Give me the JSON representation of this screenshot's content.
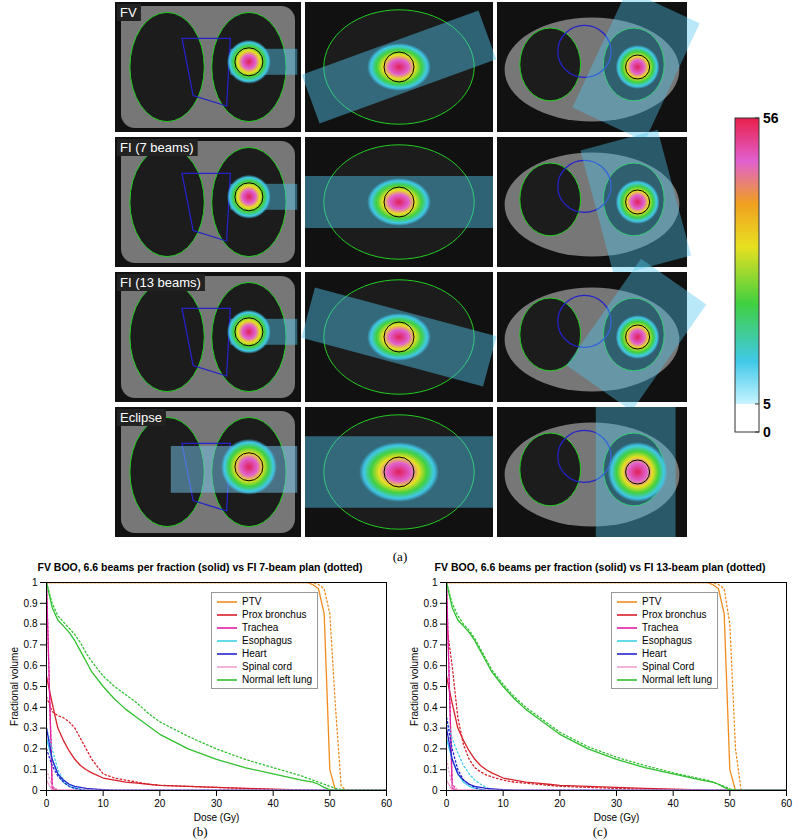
{
  "chart_data": [
    {
      "type": "image",
      "rows": [
        "FV",
        "FI (7 beams)",
        "FI (13 beams)",
        "Eclipse"
      ],
      "colorbar": {
        "range": [
          0,
          56
        ],
        "ticks": [
          0,
          5,
          56
        ]
      },
      "caption": "(a)"
    },
    {
      "type": "line",
      "title": "FV BOO, 6.6 beams per fraction (solid) vs FI 7-beam plan (dotted)",
      "x_label": "Dose (Gy)",
      "y_label": "Fractional volume",
      "xlim": [
        0,
        60
      ],
      "xticks": [
        0,
        10,
        20,
        30,
        40,
        50,
        60
      ],
      "ylim": [
        0,
        1
      ],
      "yticks": [
        0,
        0.1,
        0.2,
        0.3,
        0.4,
        0.5,
        0.6,
        0.7,
        0.8,
        0.9,
        1
      ],
      "grid": false,
      "legend": "upper right",
      "caption": "(b)",
      "x": [
        0,
        1,
        2,
        3,
        4,
        5,
        6,
        7,
        8,
        10,
        12,
        14,
        16,
        18,
        20,
        25,
        30,
        35,
        40,
        45,
        46,
        47,
        48,
        49,
        50,
        51,
        52,
        53,
        55,
        60
      ],
      "series": [
        {
          "name": "PTV",
          "color": "#f08c1e",
          "line_style": "solid",
          "values": [
            1,
            1,
            1,
            1,
            1,
            1,
            1,
            1,
            1,
            1,
            1,
            1,
            1,
            1,
            1,
            1,
            1,
            1,
            1,
            1,
            1,
            0.99,
            0.97,
            0.85,
            0.1,
            0,
            0,
            0,
            0,
            0
          ]
        },
        {
          "name": "PTV",
          "color": "#f08c1e",
          "line_style": "dotted",
          "values": [
            1,
            1,
            1,
            1,
            1,
            1,
            1,
            1,
            1,
            1,
            1,
            1,
            1,
            1,
            1,
            1,
            1,
            1,
            1,
            1,
            1,
            1,
            0.99,
            0.97,
            0.85,
            0.4,
            0.02,
            0,
            0,
            0
          ]
        },
        {
          "name": "Prox bronchus",
          "color": "#d8202a",
          "line_style": "solid",
          "values": [
            0.55,
            0.42,
            0.3,
            0.24,
            0.19,
            0.15,
            0.12,
            0.1,
            0.085,
            0.06,
            0.05,
            0.04,
            0.035,
            0.03,
            0.025,
            0.02,
            0.015,
            0.01,
            0.006,
            0.003,
            0.001,
            0,
            0,
            0,
            0,
            0,
            0,
            0,
            0,
            0
          ]
        },
        {
          "name": "Prox bronchus",
          "color": "#d8202a",
          "line_style": "dotted",
          "values": [
            0.45,
            0.38,
            0.36,
            0.35,
            0.33,
            0.3,
            0.25,
            0.2,
            0.15,
            0.08,
            0.06,
            0.05,
            0.04,
            0.03,
            0.025,
            0.02,
            0.015,
            0.01,
            0.005,
            0,
            0,
            0,
            0,
            0,
            0,
            0,
            0,
            0,
            0,
            0
          ]
        },
        {
          "name": "Trachea",
          "color": "#e020a0",
          "line_style": "solid",
          "values": [
            1,
            0.01,
            0,
            0,
            0,
            0,
            0,
            0,
            0,
            0,
            0,
            0,
            0,
            0,
            0,
            0,
            0,
            0,
            0,
            0,
            0,
            0,
            0,
            0,
            0,
            0,
            0,
            0,
            0,
            0
          ]
        },
        {
          "name": "Trachea",
          "color": "#e020a0",
          "line_style": "dotted",
          "values": [
            1,
            0.02,
            0,
            0,
            0,
            0,
            0,
            0,
            0,
            0,
            0,
            0,
            0,
            0,
            0,
            0,
            0,
            0,
            0,
            0,
            0,
            0,
            0,
            0,
            0,
            0,
            0,
            0,
            0,
            0
          ]
        },
        {
          "name": "Esophagus",
          "color": "#40d0e8",
          "line_style": "solid",
          "values": [
            0.25,
            0.15,
            0.08,
            0.04,
            0.02,
            0.01,
            0.005,
            0,
            0,
            0,
            0,
            0,
            0,
            0,
            0,
            0,
            0,
            0,
            0,
            0,
            0,
            0,
            0,
            0,
            0,
            0,
            0,
            0,
            0,
            0
          ]
        },
        {
          "name": "Esophagus",
          "color": "#40d0e8",
          "line_style": "dotted",
          "values": [
            0.3,
            0.2,
            0.1,
            0.05,
            0.03,
            0.015,
            0.005,
            0,
            0,
            0,
            0,
            0,
            0,
            0,
            0,
            0,
            0,
            0,
            0,
            0,
            0,
            0,
            0,
            0,
            0,
            0,
            0,
            0,
            0,
            0
          ]
        },
        {
          "name": "Heart",
          "color": "#2424d0",
          "line_style": "solid",
          "values": [
            0.3,
            0.15,
            0.08,
            0.05,
            0.03,
            0.02,
            0.015,
            0.01,
            0.008,
            0.004,
            0.001,
            0,
            0,
            0,
            0,
            0,
            0,
            0,
            0,
            0,
            0,
            0,
            0,
            0,
            0,
            0,
            0,
            0,
            0,
            0
          ]
        },
        {
          "name": "Heart",
          "color": "#2424d0",
          "line_style": "dotted",
          "values": [
            0.2,
            0.12,
            0.07,
            0.04,
            0.02,
            0.01,
            0.005,
            0,
            0,
            0,
            0,
            0,
            0,
            0,
            0,
            0,
            0,
            0,
            0,
            0,
            0,
            0,
            0,
            0,
            0,
            0,
            0,
            0,
            0,
            0
          ]
        },
        {
          "name": "Spinal cord",
          "color": "#f0a0d0",
          "line_style": "solid",
          "values": [
            0.05,
            0,
            0,
            0,
            0,
            0,
            0,
            0,
            0,
            0,
            0,
            0,
            0,
            0,
            0,
            0,
            0,
            0,
            0,
            0,
            0,
            0,
            0,
            0,
            0,
            0,
            0,
            0,
            0,
            0
          ]
        },
        {
          "name": "Spinal cord",
          "color": "#f0a0d0",
          "line_style": "dotted",
          "values": [
            0.1,
            0.02,
            0,
            0,
            0,
            0,
            0,
            0,
            0,
            0,
            0,
            0,
            0,
            0,
            0,
            0,
            0,
            0,
            0,
            0,
            0,
            0,
            0,
            0,
            0,
            0,
            0,
            0,
            0,
            0
          ]
        },
        {
          "name": "Normal left lung",
          "color": "#30c030",
          "line_style": "solid",
          "values": [
            1,
            0.88,
            0.82,
            0.79,
            0.76,
            0.72,
            0.67,
            0.62,
            0.57,
            0.5,
            0.44,
            0.39,
            0.35,
            0.31,
            0.27,
            0.2,
            0.15,
            0.11,
            0.08,
            0.05,
            0.045,
            0.04,
            0.03,
            0.015,
            0.003,
            0,
            0,
            0,
            0,
            0
          ]
        },
        {
          "name": "Normal left lung",
          "color": "#30c030",
          "line_style": "dotted",
          "values": [
            1,
            0.9,
            0.84,
            0.81,
            0.78,
            0.75,
            0.71,
            0.66,
            0.62,
            0.55,
            0.5,
            0.46,
            0.42,
            0.37,
            0.33,
            0.26,
            0.2,
            0.15,
            0.11,
            0.07,
            0.06,
            0.05,
            0.04,
            0.03,
            0.02,
            0.01,
            0.005,
            0,
            0,
            0
          ]
        }
      ]
    },
    {
      "type": "line",
      "title": "FV BOO, 6.6 beams per fraction (solid) vs FI 13-beam plan (dotted)",
      "x_label": "Dose (Gy)",
      "y_label": "Fractional volume",
      "xlim": [
        0,
        60
      ],
      "xticks": [
        0,
        10,
        20,
        30,
        40,
        50,
        60
      ],
      "ylim": [
        0,
        1
      ],
      "yticks": [
        0,
        0.1,
        0.2,
        0.3,
        0.4,
        0.5,
        0.6,
        0.7,
        0.8,
        0.9,
        1
      ],
      "grid": false,
      "legend": "upper right",
      "caption": "(c)",
      "x": [
        0,
        1,
        2,
        3,
        4,
        5,
        6,
        7,
        8,
        10,
        12,
        14,
        16,
        18,
        20,
        25,
        30,
        35,
        40,
        45,
        46,
        47,
        48,
        49,
        50,
        51,
        52,
        53,
        55,
        60
      ],
      "series": [
        {
          "name": "PTV",
          "color": "#f08c1e",
          "line_style": "solid",
          "values": [
            1,
            1,
            1,
            1,
            1,
            1,
            1,
            1,
            1,
            1,
            1,
            1,
            1,
            1,
            1,
            1,
            1,
            1,
            1,
            1,
            1,
            0.99,
            0.97,
            0.85,
            0.1,
            0,
            0,
            0,
            0,
            0
          ]
        },
        {
          "name": "PTV",
          "color": "#f08c1e",
          "line_style": "dotted",
          "values": [
            1,
            1,
            1,
            1,
            1,
            1,
            1,
            1,
            1,
            1,
            1,
            1,
            1,
            1,
            1,
            1,
            1,
            1,
            1,
            1,
            1,
            1,
            0.99,
            0.97,
            0.8,
            0.2,
            0,
            0,
            0,
            0
          ]
        },
        {
          "name": "Prox bronchus",
          "color": "#d8202a",
          "line_style": "solid",
          "values": [
            0.55,
            0.42,
            0.3,
            0.24,
            0.19,
            0.15,
            0.12,
            0.1,
            0.085,
            0.06,
            0.05,
            0.04,
            0.035,
            0.03,
            0.025,
            0.02,
            0.015,
            0.01,
            0.006,
            0.003,
            0.001,
            0,
            0,
            0,
            0,
            0,
            0,
            0,
            0,
            0
          ]
        },
        {
          "name": "Prox bronchus",
          "color": "#d8202a",
          "line_style": "dotted",
          "values": [
            0.8,
            0.6,
            0.35,
            0.22,
            0.15,
            0.11,
            0.09,
            0.075,
            0.065,
            0.05,
            0.04,
            0.035,
            0.03,
            0.025,
            0.02,
            0.015,
            0.01,
            0.007,
            0.004,
            0.001,
            0,
            0,
            0,
            0,
            0,
            0,
            0,
            0,
            0,
            0
          ]
        },
        {
          "name": "Trachea",
          "color": "#e020a0",
          "line_style": "solid",
          "values": [
            1,
            0.01,
            0,
            0,
            0,
            0,
            0,
            0,
            0,
            0,
            0,
            0,
            0,
            0,
            0,
            0,
            0,
            0,
            0,
            0,
            0,
            0,
            0,
            0,
            0,
            0,
            0,
            0,
            0,
            0
          ]
        },
        {
          "name": "Trachea",
          "color": "#e020a0",
          "line_style": "dotted",
          "values": [
            1,
            0.03,
            0,
            0,
            0,
            0,
            0,
            0,
            0,
            0,
            0,
            0,
            0,
            0,
            0,
            0,
            0,
            0,
            0,
            0,
            0,
            0,
            0,
            0,
            0,
            0,
            0,
            0,
            0,
            0
          ]
        },
        {
          "name": "Esophagus",
          "color": "#40d0e8",
          "line_style": "solid",
          "values": [
            0.25,
            0.15,
            0.08,
            0.04,
            0.02,
            0.01,
            0.005,
            0,
            0,
            0,
            0,
            0,
            0,
            0,
            0,
            0,
            0,
            0,
            0,
            0,
            0,
            0,
            0,
            0,
            0,
            0,
            0,
            0,
            0,
            0
          ]
        },
        {
          "name": "Esophagus",
          "color": "#40d0e8",
          "line_style": "dotted",
          "values": [
            0.35,
            0.25,
            0.18,
            0.12,
            0.08,
            0.05,
            0.03,
            0.015,
            0.005,
            0,
            0,
            0,
            0,
            0,
            0,
            0,
            0,
            0,
            0,
            0,
            0,
            0,
            0,
            0,
            0,
            0,
            0,
            0,
            0,
            0
          ]
        },
        {
          "name": "Heart",
          "color": "#2424d0",
          "line_style": "solid",
          "values": [
            0.3,
            0.15,
            0.08,
            0.05,
            0.03,
            0.02,
            0.015,
            0.01,
            0.008,
            0.004,
            0.001,
            0,
            0,
            0,
            0,
            0,
            0,
            0,
            0,
            0,
            0,
            0,
            0,
            0,
            0,
            0,
            0,
            0,
            0,
            0
          ]
        },
        {
          "name": "Heart",
          "color": "#2424d0",
          "line_style": "dotted",
          "values": [
            0.35,
            0.2,
            0.1,
            0.05,
            0.03,
            0.015,
            0.005,
            0,
            0,
            0,
            0,
            0,
            0,
            0,
            0,
            0,
            0,
            0,
            0,
            0,
            0,
            0,
            0,
            0,
            0,
            0,
            0,
            0,
            0,
            0
          ]
        },
        {
          "name": "Spinal Cord",
          "color": "#f0a0d0",
          "line_style": "solid",
          "values": [
            0.05,
            0,
            0,
            0,
            0,
            0,
            0,
            0,
            0,
            0,
            0,
            0,
            0,
            0,
            0,
            0,
            0,
            0,
            0,
            0,
            0,
            0,
            0,
            0,
            0,
            0,
            0,
            0,
            0,
            0
          ]
        },
        {
          "name": "Spinal Cord",
          "color": "#f0a0d0",
          "line_style": "dotted",
          "values": [
            0.15,
            0.02,
            0,
            0,
            0,
            0,
            0,
            0,
            0,
            0,
            0,
            0,
            0,
            0,
            0,
            0,
            0,
            0,
            0,
            0,
            0,
            0,
            0,
            0,
            0,
            0,
            0,
            0,
            0,
            0
          ]
        },
        {
          "name": "Normal left lung",
          "color": "#30c030",
          "line_style": "solid",
          "values": [
            1,
            0.88,
            0.82,
            0.79,
            0.76,
            0.72,
            0.67,
            0.62,
            0.57,
            0.5,
            0.44,
            0.39,
            0.35,
            0.31,
            0.27,
            0.2,
            0.15,
            0.11,
            0.08,
            0.05,
            0.045,
            0.04,
            0.03,
            0.015,
            0.003,
            0,
            0,
            0,
            0,
            0
          ]
        },
        {
          "name": "Normal left lung",
          "color": "#30c030",
          "line_style": "dotted",
          "values": [
            1,
            0.9,
            0.84,
            0.8,
            0.77,
            0.73,
            0.68,
            0.63,
            0.58,
            0.51,
            0.45,
            0.4,
            0.36,
            0.32,
            0.28,
            0.21,
            0.16,
            0.12,
            0.085,
            0.055,
            0.05,
            0.04,
            0.03,
            0.02,
            0.008,
            0.002,
            0,
            0,
            0,
            0
          ]
        }
      ]
    }
  ]
}
